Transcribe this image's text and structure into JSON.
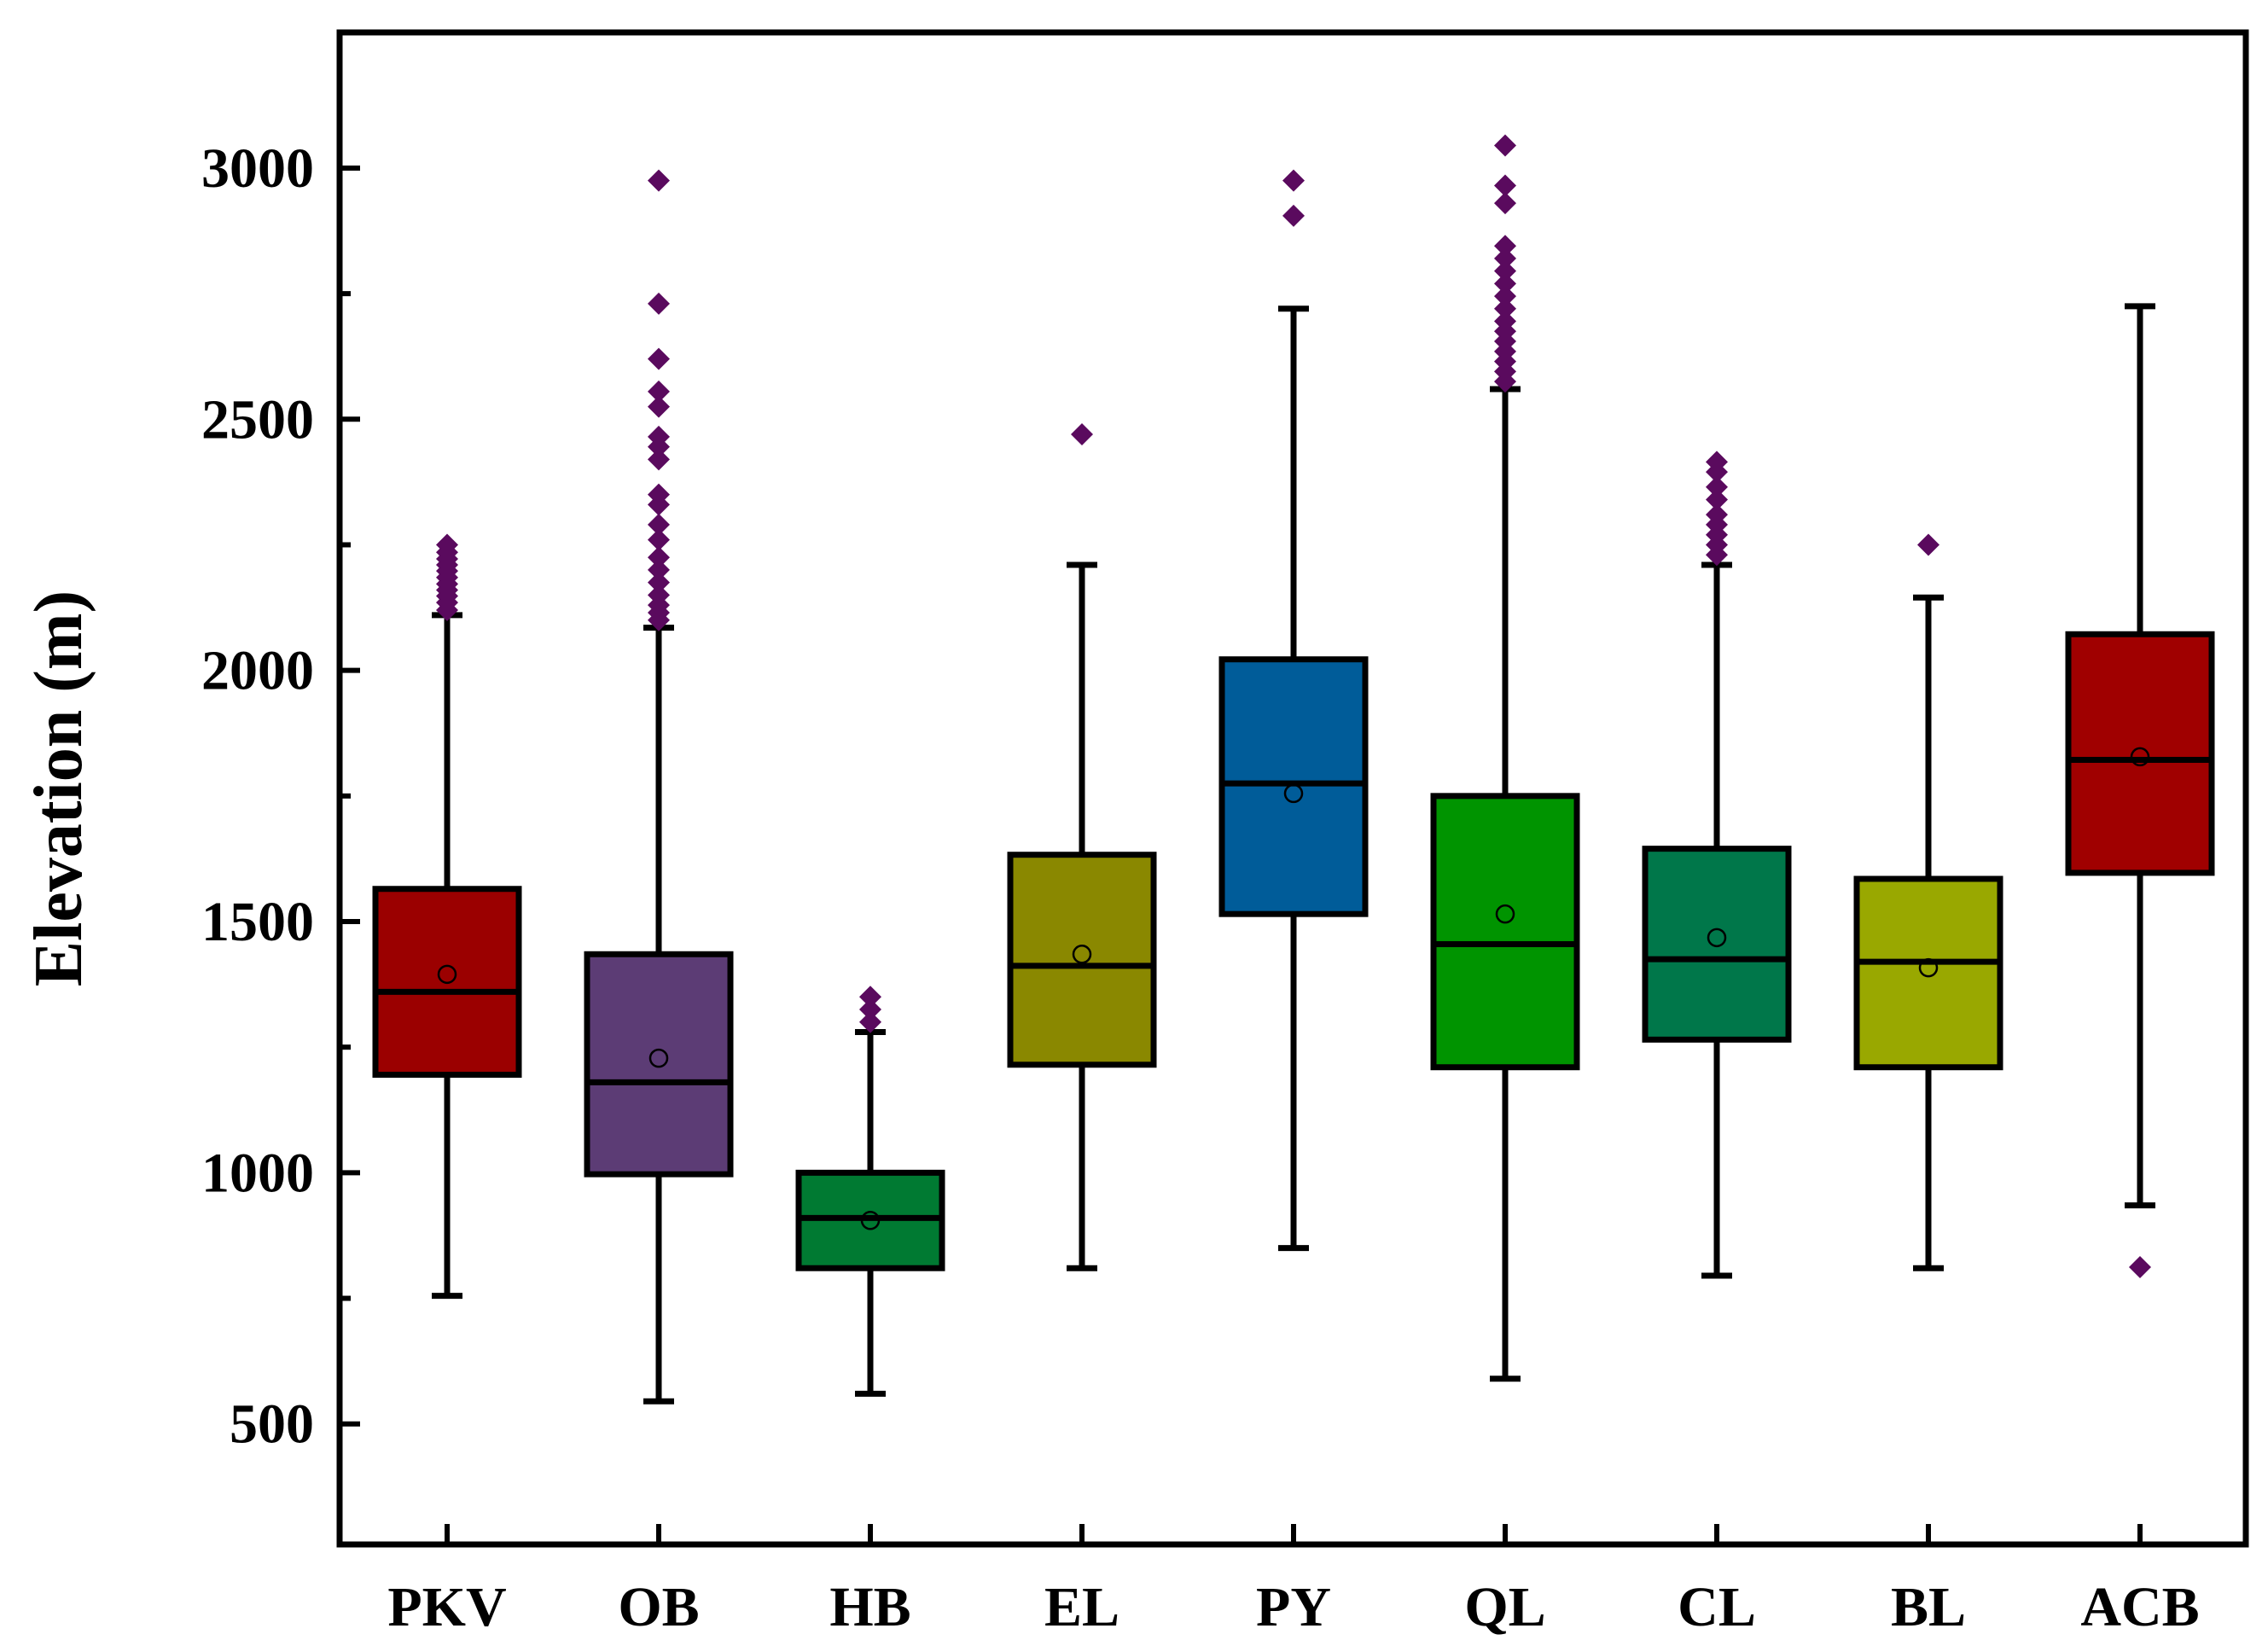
{
  "chart_data": {
    "type": "box",
    "title": "",
    "xlabel": "",
    "ylabel": "Elevation (m)",
    "ylim": [
      260,
      3270
    ],
    "yticks_major": [
      500,
      1000,
      1500,
      2000,
      2500,
      3000
    ],
    "yticks_minor": [
      750,
      1250,
      1750,
      2250,
      2750
    ],
    "categories": [
      "PKV",
      "OB",
      "HB",
      "EL",
      "PY",
      "QL",
      "CL",
      "BL",
      "ACB"
    ],
    "colors": {
      "PKV": "#9b0000",
      "OB": "#5c3c75",
      "HB": "#007a32",
      "EL": "#8a8800",
      "PY": "#005c99",
      "QL": "#009400",
      "CL": "#00774a",
      "BL": "#99a800",
      "ACB": "#a00000",
      "outlier": "#5a0a5e",
      "axis": "#000000"
    },
    "boxes": [
      {
        "name": "PKV",
        "whisker_low": 755,
        "q1": 1195,
        "median": 1360,
        "q3": 1565,
        "whisker_high": 2110,
        "mean": 1395,
        "outliers": [
          2120,
          2135,
          2148,
          2160,
          2172,
          2185,
          2198,
          2210,
          2222,
          2235,
          2250
        ]
      },
      {
        "name": "OB",
        "whisker_low": 545,
        "q1": 997,
        "median": 1180,
        "q3": 1435,
        "whisker_high": 2085,
        "mean": 1228,
        "outliers": [
          2100,
          2115,
          2130,
          2150,
          2175,
          2200,
          2225,
          2260,
          2290,
          2330,
          2350,
          2420,
          2445,
          2465,
          2525,
          2555,
          2620,
          2730,
          2975
        ]
      },
      {
        "name": "HB",
        "whisker_low": 560,
        "q1": 810,
        "median": 910,
        "q3": 1000,
        "whisker_high": 1280,
        "mean": 905,
        "outliers": [
          1300,
          1325,
          1350
        ]
      },
      {
        "name": "EL",
        "whisker_low": 810,
        "q1": 1215,
        "median": 1412,
        "q3": 1633,
        "whisker_high": 2210,
        "mean": 1435,
        "outliers": [
          2470
        ]
      },
      {
        "name": "PY",
        "whisker_low": 850,
        "q1": 1515,
        "median": 1775,
        "q3": 2022,
        "whisker_high": 2720,
        "mean": 1755,
        "outliers": [
          2905,
          2975
        ]
      },
      {
        "name": "QL",
        "whisker_low": 590,
        "q1": 1210,
        "median": 1455,
        "q3": 1750,
        "whisker_high": 2560,
        "mean": 1515,
        "outliers": [
          2575,
          2595,
          2615,
          2635,
          2655,
          2675,
          2695,
          2720,
          2745,
          2770,
          2795,
          2820,
          2845,
          2930,
          2965,
          3045
        ]
      },
      {
        "name": "CL",
        "whisker_low": 795,
        "q1": 1265,
        "median": 1425,
        "q3": 1645,
        "whisker_high": 2210,
        "mean": 1468,
        "outliers": [
          2230,
          2250,
          2270,
          2290,
          2310,
          2340,
          2365,
          2395,
          2415
        ]
      },
      {
        "name": "BL",
        "whisker_low": 810,
        "q1": 1210,
        "median": 1420,
        "q3": 1585,
        "whisker_high": 2145,
        "mean": 1408,
        "outliers": [
          2250
        ]
      },
      {
        "name": "ACB",
        "whisker_low": 935,
        "q1": 1597,
        "median": 1822,
        "q3": 2072,
        "whisker_high": 2725,
        "mean": 1828,
        "outliers": [
          812
        ]
      }
    ]
  }
}
